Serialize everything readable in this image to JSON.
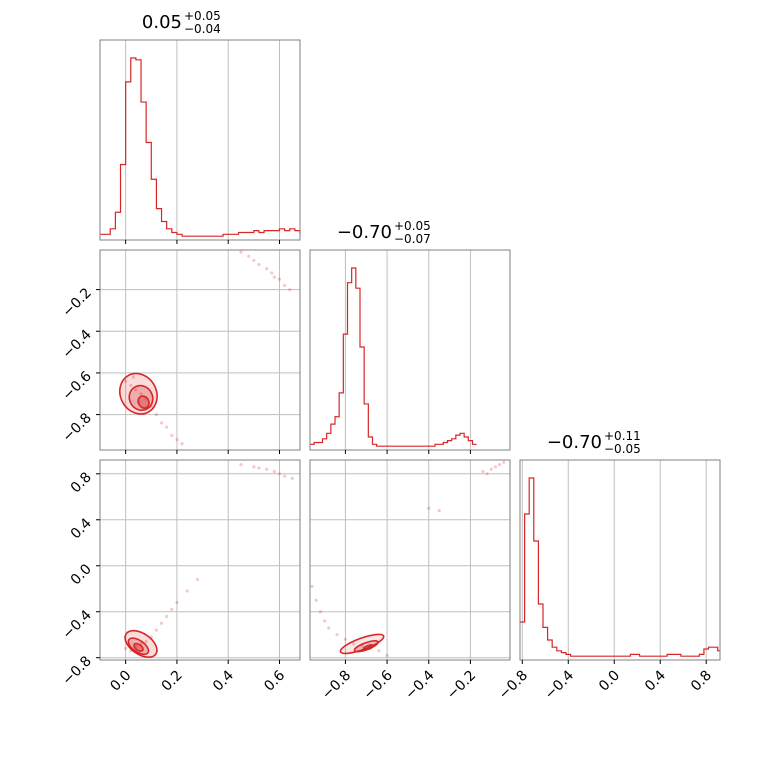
{
  "chart_data": {
    "type": "corner",
    "color": "#d62728",
    "grid": true,
    "parameters": [
      {
        "title": {
          "median": "0.05",
          "plus": "+0.05",
          "minus": "−0.04"
        },
        "range": [
          -0.1,
          0.68
        ],
        "ticks": [
          0.0,
          0.2,
          0.4,
          0.6
        ],
        "tick_labels": [
          "0.0",
          "0.2",
          "0.4",
          "0.6"
        ]
      },
      {
        "title": {
          "median": "−0.70",
          "plus": "+0.05",
          "minus": "−0.07"
        },
        "range": [
          -0.97,
          -0.01
        ],
        "ticks": [
          -0.8,
          -0.6,
          -0.4,
          -0.2
        ],
        "tick_labels": [
          "−0.8",
          "−0.6",
          "−0.4",
          "−0.2"
        ]
      },
      {
        "title": {
          "median": "−0.70",
          "plus": "+0.11",
          "minus": "−0.05"
        },
        "range": [
          -0.82,
          0.92
        ],
        "ticks": [
          -0.8,
          -0.4,
          0.0,
          0.4,
          0.8
        ],
        "tick_labels": [
          "−0.8",
          "−0.4",
          "0.0",
          "0.4",
          "0.8"
        ]
      }
    ],
    "histograms": [
      {
        "param": 0,
        "bin_start": -0.1,
        "bin_width": 0.02,
        "counts": [
          2,
          2,
          5,
          14,
          40,
          85,
          98,
          97,
          74,
          52,
          32,
          16,
          9,
          5,
          3,
          2,
          1,
          1,
          1,
          1,
          1,
          1,
          1,
          1,
          2,
          2,
          2,
          3,
          3,
          3,
          4,
          3,
          4,
          4,
          4,
          5,
          4,
          5,
          4,
          2
        ]
      },
      {
        "param": 1,
        "bin_start": -0.97,
        "bin_width": 0.02,
        "counts": [
          2,
          3,
          3,
          5,
          8,
          13,
          17,
          30,
          62,
          90,
          98,
          87,
          55,
          24,
          6,
          2,
          1,
          1,
          1,
          1,
          1,
          1,
          1,
          1,
          1,
          1,
          1,
          1,
          1,
          1,
          2,
          2,
          3,
          4,
          5,
          7,
          8,
          6,
          4,
          2
        ]
      },
      {
        "param": 2,
        "bin_start": -0.82,
        "bin_width": 0.04,
        "counts": [
          20,
          80,
          100,
          65,
          30,
          17,
          10,
          6,
          4,
          3,
          2,
          1,
          1,
          1,
          1,
          1,
          1,
          1,
          1,
          1,
          1,
          1,
          1,
          1,
          2,
          2,
          1,
          1,
          1,
          1,
          1,
          1,
          2,
          2,
          2,
          1,
          1,
          1,
          1,
          2,
          5,
          6,
          6,
          4
        ]
      }
    ],
    "scatter_samples": {
      "p0_p1": [
        [
          0.0,
          -0.64
        ],
        [
          0.02,
          -0.66
        ],
        [
          0.04,
          -0.68
        ],
        [
          0.06,
          -0.7
        ],
        [
          0.08,
          -0.72
        ],
        [
          0.1,
          -0.76
        ],
        [
          0.12,
          -0.8
        ],
        [
          0.14,
          -0.84
        ],
        [
          0.16,
          -0.86
        ],
        [
          0.18,
          -0.9
        ],
        [
          0.2,
          -0.92
        ],
        [
          0.22,
          -0.94
        ],
        [
          0.03,
          -0.62
        ],
        [
          0.05,
          -0.74
        ],
        [
          0.45,
          -0.02
        ],
        [
          0.5,
          -0.06
        ],
        [
          0.55,
          -0.1
        ],
        [
          0.58,
          -0.14
        ],
        [
          0.6,
          -0.15
        ],
        [
          0.62,
          -0.18
        ],
        [
          0.52,
          -0.08
        ],
        [
          0.48,
          -0.04
        ],
        [
          0.64,
          -0.2
        ],
        [
          0.57,
          -0.12
        ]
      ],
      "p0_p2": [
        [
          0.0,
          -0.72
        ],
        [
          0.02,
          -0.74
        ],
        [
          0.04,
          -0.7
        ],
        [
          0.06,
          -0.68
        ],
        [
          0.08,
          -0.66
        ],
        [
          0.1,
          -0.62
        ],
        [
          0.12,
          -0.56
        ],
        [
          0.14,
          -0.5
        ],
        [
          0.16,
          -0.44
        ],
        [
          0.18,
          -0.38
        ],
        [
          0.2,
          -0.32
        ],
        [
          0.24,
          -0.22
        ],
        [
          0.28,
          -0.12
        ],
        [
          0.45,
          0.88
        ],
        [
          0.5,
          0.86
        ],
        [
          0.55,
          0.84
        ],
        [
          0.58,
          0.82
        ],
        [
          0.6,
          0.8
        ],
        [
          0.62,
          0.78
        ],
        [
          0.65,
          0.76
        ],
        [
          0.52,
          0.85
        ]
      ],
      "p1_p2": [
        [
          -0.96,
          -0.18
        ],
        [
          -0.94,
          -0.3
        ],
        [
          -0.92,
          -0.4
        ],
        [
          -0.9,
          -0.48
        ],
        [
          -0.88,
          -0.54
        ],
        [
          -0.84,
          -0.6
        ],
        [
          -0.8,
          -0.64
        ],
        [
          -0.76,
          -0.68
        ],
        [
          -0.72,
          -0.7
        ],
        [
          -0.68,
          -0.72
        ],
        [
          -0.64,
          -0.74
        ],
        [
          -0.6,
          -0.78
        ],
        [
          -0.4,
          0.5
        ],
        [
          -0.35,
          0.48
        ],
        [
          -0.14,
          0.82
        ],
        [
          -0.1,
          0.84
        ],
        [
          -0.08,
          0.86
        ],
        [
          -0.06,
          0.88
        ],
        [
          -0.12,
          0.8
        ],
        [
          -0.04,
          0.9
        ]
      ]
    },
    "contours": {
      "p0_p1": [
        {
          "cx": 0.05,
          "cy": -0.7,
          "rx": 0.07,
          "ry": 0.1,
          "rot": -0.5,
          "fill": 0.35
        },
        {
          "cx": 0.06,
          "cy": -0.72,
          "rx": 0.045,
          "ry": 0.06,
          "rot": -0.5,
          "fill": 0.6
        },
        {
          "cx": 0.07,
          "cy": -0.74,
          "rx": 0.02,
          "ry": 0.03,
          "rot": -0.5,
          "fill": 0.85
        }
      ],
      "p0_p2": [
        {
          "cx": 0.06,
          "cy": -0.68,
          "rx": 0.07,
          "ry": 0.09,
          "rot": 0.6,
          "fill": 0.35
        },
        {
          "cx": 0.05,
          "cy": -0.7,
          "rx": 0.045,
          "ry": 0.05,
          "rot": 0.6,
          "fill": 0.6
        },
        {
          "cx": 0.05,
          "cy": -0.71,
          "rx": 0.02,
          "ry": 0.025,
          "rot": 0.6,
          "fill": 0.85
        }
      ],
      "p1_p2": [
        {
          "cx": -0.72,
          "cy": -0.68,
          "rx": 0.11,
          "ry": 0.05,
          "rot": -0.35,
          "fill": 0.25
        },
        {
          "cx": -0.7,
          "cy": -0.7,
          "rx": 0.06,
          "ry": 0.03,
          "rot": -0.35,
          "fill": 0.5
        },
        {
          "cx": -0.69,
          "cy": -0.71,
          "rx": 0.025,
          "ry": 0.015,
          "rot": -0.35,
          "fill": 0.8
        }
      ]
    }
  }
}
